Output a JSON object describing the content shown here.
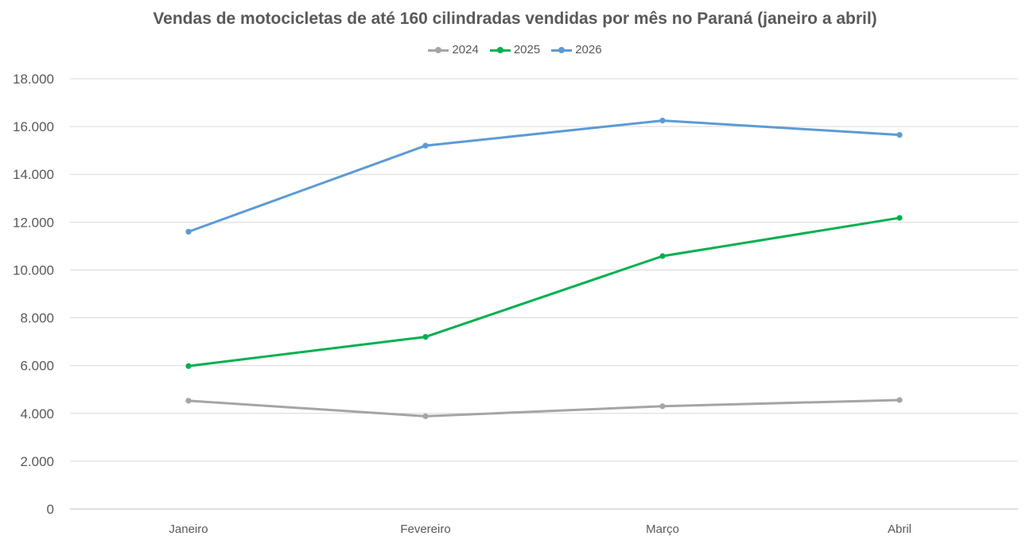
{
  "chart_data": {
    "type": "line",
    "title": "Vendas de motocicletas de até 160 cilindradas vendidas por mês no Paraná (janeiro a abril)",
    "xlabel": "",
    "ylabel": "",
    "categories": [
      "Janeiro",
      "Fevereiro",
      "Março",
      "Abril"
    ],
    "ylim": [
      0,
      18000
    ],
    "yticks": [
      0,
      2000,
      4000,
      6000,
      8000,
      10000,
      12000,
      14000,
      16000,
      18000
    ],
    "ytick_labels": [
      "0",
      "2.000",
      "4.000",
      "6.000",
      "8.000",
      "10.000",
      "12.000",
      "14.000",
      "16.000",
      "18.000"
    ],
    "grid": true,
    "legend_position": "top",
    "series": [
      {
        "name": "2024",
        "color": "#a5a5a5",
        "values": [
          4530,
          3880,
          4300,
          4560
        ]
      },
      {
        "name": "2025",
        "color": "#00b050",
        "values": [
          5980,
          7200,
          10580,
          12180
        ]
      },
      {
        "name": "2026",
        "color": "#5b9bd5",
        "values": [
          11600,
          15200,
          16250,
          15650
        ]
      }
    ]
  }
}
